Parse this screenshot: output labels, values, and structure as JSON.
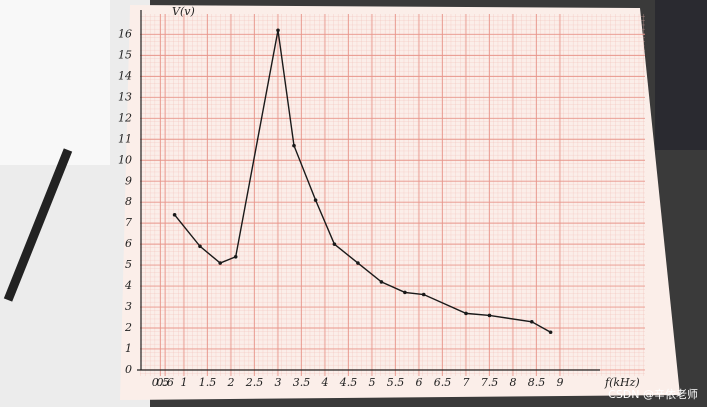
{
  "chart_data": {
    "type": "line",
    "y_label": "V(v)",
    "x_label": "f(kHz)",
    "x": [
      0.8,
      1.34,
      1.77,
      2.1,
      3.0,
      3.34,
      3.8,
      4.2,
      4.7,
      5.2,
      5.7,
      6.1,
      7.0,
      7.5,
      8.4,
      8.8
    ],
    "series": [
      {
        "name": "V",
        "color": "#1a1a1a",
        "values": [
          7.4,
          5.9,
          5.1,
          5.4,
          16.2,
          10.7,
          8.1,
          6.0,
          5.1,
          4.2,
          3.7,
          3.6,
          2.7,
          2.6,
          2.3,
          1.8
        ]
      }
    ],
    "xlim": [
      0,
      9.5
    ],
    "ylim": [
      0,
      16.5
    ],
    "xticks": [
      0.5,
      0.6,
      1,
      1.5,
      2,
      2.5,
      3,
      3.5,
      4,
      4.5,
      5,
      5.5,
      6,
      6.5,
      7,
      7.5,
      8,
      8.5,
      9
    ],
    "yticks": [
      0,
      1,
      2,
      3,
      4,
      5,
      6,
      7,
      8,
      9,
      10,
      11,
      12,
      13,
      14,
      15,
      16
    ],
    "grid": true
  },
  "watermark": "CSDN @辛依老师"
}
